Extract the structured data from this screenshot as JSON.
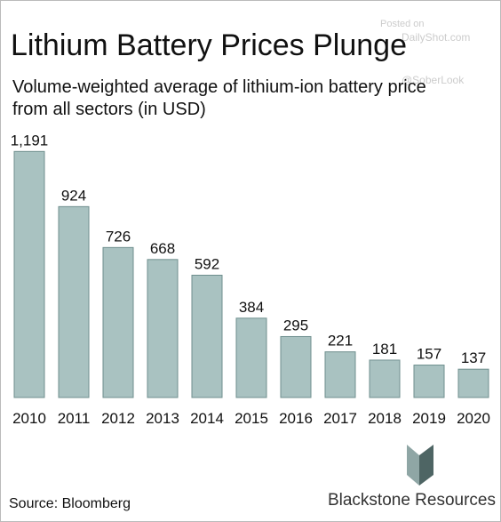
{
  "chart_data": {
    "type": "bar",
    "title": "Lithium Battery Prices Plunge",
    "subtitle": [
      "Volume-weighted average of lithium-ion battery price",
      "from all sectors (in USD)"
    ],
    "categories": [
      "2010",
      "2011",
      "2012",
      "2013",
      "2014",
      "2015",
      "2016",
      "2017",
      "2018",
      "2019",
      "2020"
    ],
    "values": [
      1191,
      924,
      726,
      668,
      592,
      384,
      295,
      221,
      181,
      157,
      137
    ],
    "value_labels": [
      "1,191",
      "924",
      "726",
      "668",
      "592",
      "384",
      "295",
      "221",
      "181",
      "157",
      "137"
    ],
    "color": "#a9c2c1",
    "ylim": [
      0,
      1300
    ],
    "source": "Source: Bloomberg",
    "brand": "Blackstone Resources",
    "watermark": [
      "Posted on",
      "DailyShot.com",
      "@SoberLook"
    ]
  }
}
